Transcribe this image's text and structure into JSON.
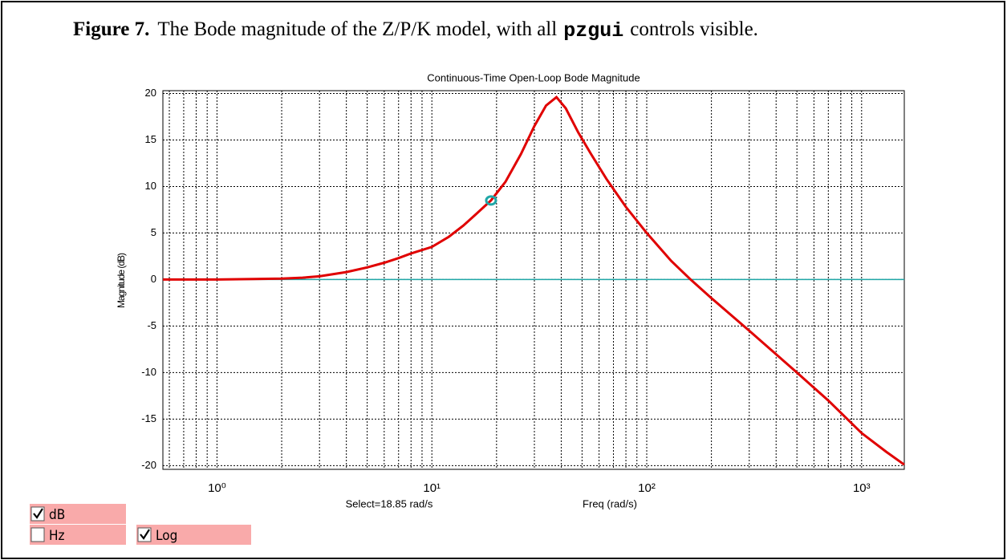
{
  "figure": {
    "label": "Figure 7.",
    "text_before": "The Bode magnitude of the Z/P/K model, with all",
    "code": "pzgui",
    "text_after": "controls visible."
  },
  "chart_data": {
    "type": "line",
    "title": "Continuous-Time Open-Loop Bode Magnitude",
    "y_label": "Magnitude (dB)",
    "x_label": "Freq (rad/s)",
    "annotation": "Select=18.85 rad/s",
    "x_scale": "log",
    "grid": true,
    "xlim": [
      0.56,
      1580
    ],
    "ylim": [
      -20.4,
      20.3
    ],
    "xticks": [
      {
        "value": 1,
        "label": "10⁰"
      },
      {
        "value": 10,
        "label": "10¹"
      },
      {
        "value": 100,
        "label": "10²"
      },
      {
        "value": 1000,
        "label": "10³"
      }
    ],
    "x_minor_ticks": [
      0.6,
      0.7,
      0.8,
      0.9,
      2,
      3,
      4,
      5,
      6,
      7,
      8,
      9,
      20,
      30,
      40,
      50,
      60,
      70,
      80,
      90,
      200,
      300,
      400,
      500,
      600,
      700,
      800,
      900
    ],
    "yticks": [
      -20,
      -15,
      -10,
      -5,
      0,
      5,
      10,
      15,
      20
    ],
    "x": [
      0.56,
      0.7,
      1,
      1.5,
      2,
      2.5,
      3,
      4,
      5,
      6,
      7,
      8,
      10,
      12,
      14,
      16,
      18.85,
      22,
      26,
      30,
      34,
      38,
      42,
      48,
      55,
      65,
      80,
      100,
      130,
      160,
      200,
      300,
      500,
      700,
      1000,
      1300,
      1580
    ],
    "series": [
      {
        "color": "#e00000",
        "values": [
          0,
          0,
          0,
          0.05,
          0.1,
          0.2,
          0.35,
          0.8,
          1.3,
          1.8,
          2.3,
          2.8,
          3.5,
          4.6,
          5.8,
          7,
          8.5,
          10.5,
          13.5,
          16.5,
          18.7,
          19.6,
          18.4,
          15.8,
          13.5,
          10.8,
          7.8,
          5,
          2,
          0,
          -2,
          -5.5,
          -10,
          -13,
          -16.5,
          -18.5,
          -19.9
        ]
      }
    ],
    "reference_line": {
      "value": 0,
      "color": "#1fa7a7"
    },
    "selected_point": {
      "x": 18.85,
      "y": 8.5,
      "color": "#1fa7a7"
    }
  },
  "controls": [
    {
      "label": "dB",
      "checked": true
    },
    {
      "label": "Hz",
      "checked": false
    },
    {
      "label": "Log",
      "checked": true
    }
  ]
}
